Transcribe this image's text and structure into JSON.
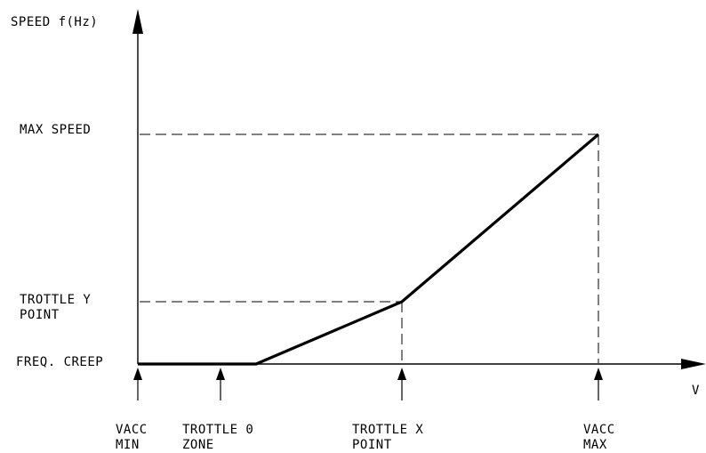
{
  "chart_data": {
    "type": "line",
    "title": "",
    "ylabel": "SPEED f(Hz)",
    "xlabel": "V",
    "y_levels": [
      {
        "key": "freq_creep",
        "label_lines": [
          "FREQ. CREEP"
        ]
      },
      {
        "key": "trottle_y",
        "label_lines": [
          "TROTTLE Y",
          "POINT"
        ]
      },
      {
        "key": "max_speed",
        "label_lines": [
          "MAX SPEED"
        ]
      }
    ],
    "x_points": [
      {
        "key": "vacc_min",
        "label_lines": [
          "VACC",
          "MIN"
        ]
      },
      {
        "key": "trottle_0",
        "label_lines": [
          "TROTTLE 0",
          "ZONE"
        ]
      },
      {
        "key": "trottle_x",
        "label_lines": [
          "TROTTLE X",
          "POINT"
        ]
      },
      {
        "key": "vacc_max",
        "label_lines": [
          "VACC",
          "MAX"
        ]
      }
    ],
    "series": [
      {
        "points": [
          {
            "x": "VACC MIN",
            "y": "FREQ. CREEP"
          },
          {
            "x": "TROTTLE 0 ZONE (end)",
            "y": "FREQ. CREEP"
          },
          {
            "x": "TROTTLE X POINT",
            "y": "TROTTLE Y POINT"
          },
          {
            "x": "VACC MAX",
            "y": "MAX SPEED"
          }
        ]
      }
    ],
    "grid": false,
    "legend": "none"
  },
  "colors": {
    "ink": "#000000",
    "background": "#ffffff"
  }
}
